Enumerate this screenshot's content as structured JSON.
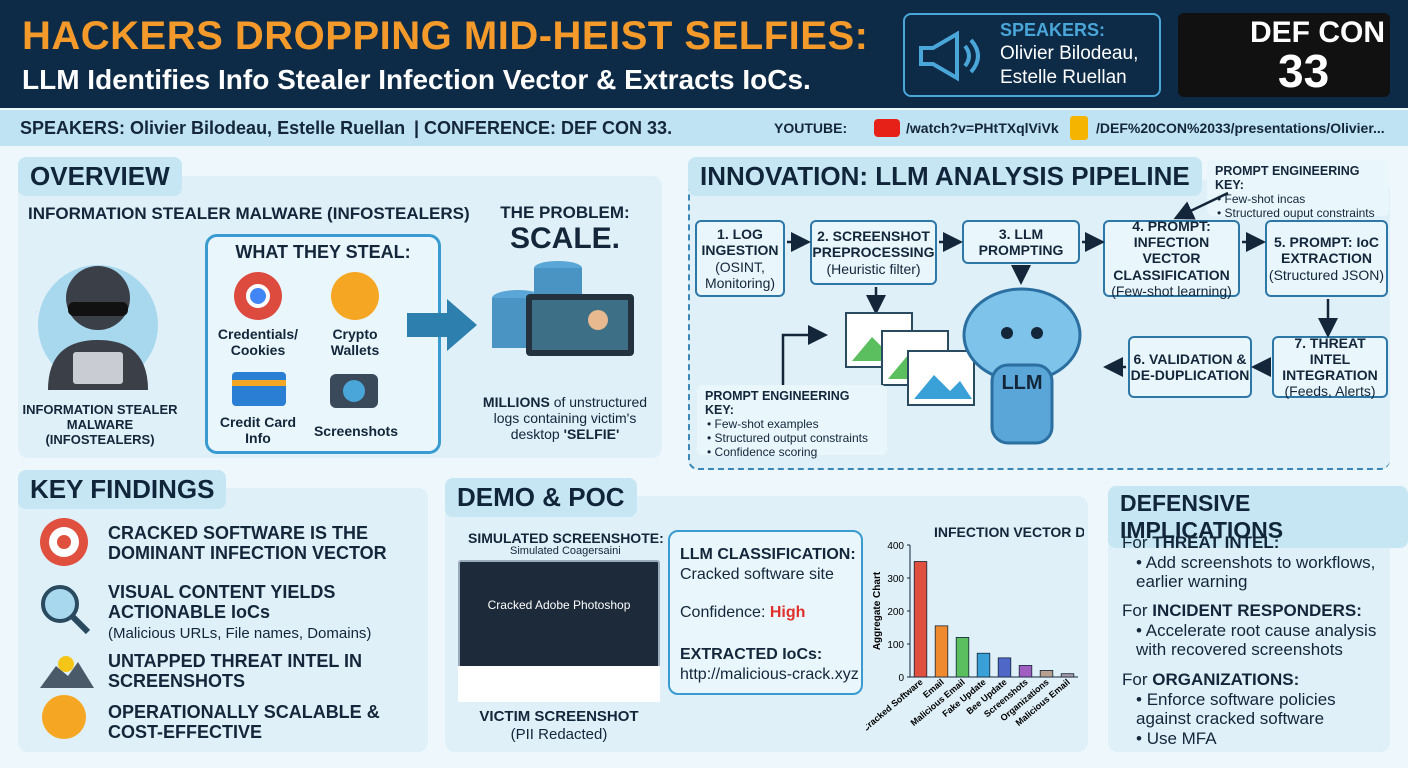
{
  "header": {
    "title": "HACKERS DROPPING MID-HEIST SELFIES:",
    "subtitle": "LLM Identifies Info Stealer Infection Vector & Extracts IoCs.",
    "speakers_label": "SPEAKERS:",
    "speakers": [
      "Olivier Bilodeau,",
      "Estelle Ruellan"
    ],
    "badge": [
      "DEF CON",
      "33"
    ]
  },
  "infobar": {
    "speakers": "SPEAKERS: Olivier Bilodeau, Estelle Ruellan",
    "conference": "| CONFERENCE: DEF CON 33.",
    "youtube_label": "YOUTUBE:",
    "youtube": "/watch?v=PHtTXqlViVk",
    "slides": "/DEF%20CON%2033/presentations/Olivier..."
  },
  "overview": {
    "heading": "OVERVIEW",
    "subheading": "INFORMATION STEALER MALWARE (INFOSTEALERS)",
    "figure_caption": "INFORMATION STEALER MALWARE (INFOSTEALERS)",
    "steal_title": "WHAT THEY STEAL:",
    "steal_items": [
      "Credentials/ Cookies",
      "Crypto Wallets",
      "Credit Card Info",
      "Screenshots"
    ],
    "problem_label": "THE PROBLEM:",
    "problem": "SCALE.",
    "problem_strong": "MILLIONS",
    "problem_text": "of unstructured logs containing victim's desktop",
    "problem_quote": "'SELFIE'"
  },
  "pipeline": {
    "heading": "INNOVATION: LLM ANALYSIS PIPELINE",
    "key_top": {
      "title": "PROMPT ENGINEERING KEY:",
      "items": [
        "Few-shot incas",
        "Structured ouput constraints"
      ]
    },
    "steps": [
      {
        "title": "1. LOG INGESTION",
        "note": "(OSINT, Monitoring)"
      },
      {
        "title": "2. SCREENSHOT PREPROCESSING",
        "note": "(Heuristic filter)"
      },
      {
        "title": "3. LLM PROMPTING"
      },
      {
        "title": "4. PROMPT: INFECTION VECTOR CLASSIFICATION",
        "note": "(Few-shot learning)"
      },
      {
        "title": "5. PROMPT: IoC EXTRACTION",
        "note": "(Structured JSON)"
      },
      {
        "title": "6. VALIDATION & DE-DUPLICATION"
      },
      {
        "title": "7. THREAT INTEL INTEGRATION",
        "note": "(Feeds, Alerts)"
      }
    ],
    "llm_label": "LLM",
    "key_bottom": {
      "title": "PROMPT ENGINEERING KEY:",
      "items": [
        "Few-shot examples",
        "Structured output constraints",
        "Confidence scoring"
      ]
    }
  },
  "findings": {
    "heading": "KEY FINDINGS",
    "items": [
      {
        "title": "CRACKED SOFTWARE IS THE DOMINANT INFECTION VECTOR"
      },
      {
        "title": "VISUAL CONTENT YIELDS ACTIONABLE IoCs",
        "note": "(Malicious URLs, File names, Domains)"
      },
      {
        "title": "UNTAPPED THREAT INTEL IN SCREENSHOTS"
      },
      {
        "title": "OPERATIONALLY SCALABLE & COST-EFFECTIVE"
      }
    ]
  },
  "demo": {
    "heading": "DEMO & POC",
    "sim_label": "SIMULATED SCREENSHOTE:",
    "sim_sub": "Simulated Coagersaini",
    "screenshot_title": "Cracked Adobe Photoshop",
    "caption": "VICTIM SCREENSHOT",
    "caption_note": "(PII Redacted)",
    "classification_label": "LLM CLASSIFICATION:",
    "classification": "Cracked software site",
    "confidence_label": "Confidence:",
    "confidence": "High",
    "iocs_label": "EXTRACTED IoCs:",
    "ioc": "http://malicious-crack.xyz"
  },
  "chart_data": {
    "type": "bar",
    "title": "INFECTION VECTOR DISTRIBUTION",
    "y_label": "Aggregate Chart",
    "categories": [
      "Cracked Software",
      "Email",
      "Malicious Email",
      "Fake Update",
      "Bee Update",
      "Screenshots",
      "Organizations",
      "Malicious Email"
    ],
    "values": [
      350,
      155,
      120,
      72,
      58,
      35,
      20,
      10
    ],
    "colors": [
      "#e0503f",
      "#f08a2e",
      "#5cbf5f",
      "#3aa0d8",
      "#4f68c8",
      "#a05fc0",
      "#b8a090",
      "#a89aa8"
    ],
    "ylim": [
      0,
      400
    ],
    "yticks": [
      0,
      100,
      200,
      300,
      400
    ]
  },
  "defense": {
    "heading": "DEFENSIVE IMPLICATIONS",
    "groups": [
      {
        "prefix": "For",
        "audience": "THREAT INTEL:",
        "items": [
          "Add screenshots to workflows, earlier warning"
        ]
      },
      {
        "prefix": "For",
        "audience": "INCIDENT RESPONDERS:",
        "items": [
          "Accelerate root cause analysis with recovered screenshots"
        ]
      },
      {
        "prefix": "For",
        "audience": "ORGANIZATIONS:",
        "items": [
          "Enforce software policies against cracked software",
          "Use MFA"
        ]
      }
    ]
  }
}
